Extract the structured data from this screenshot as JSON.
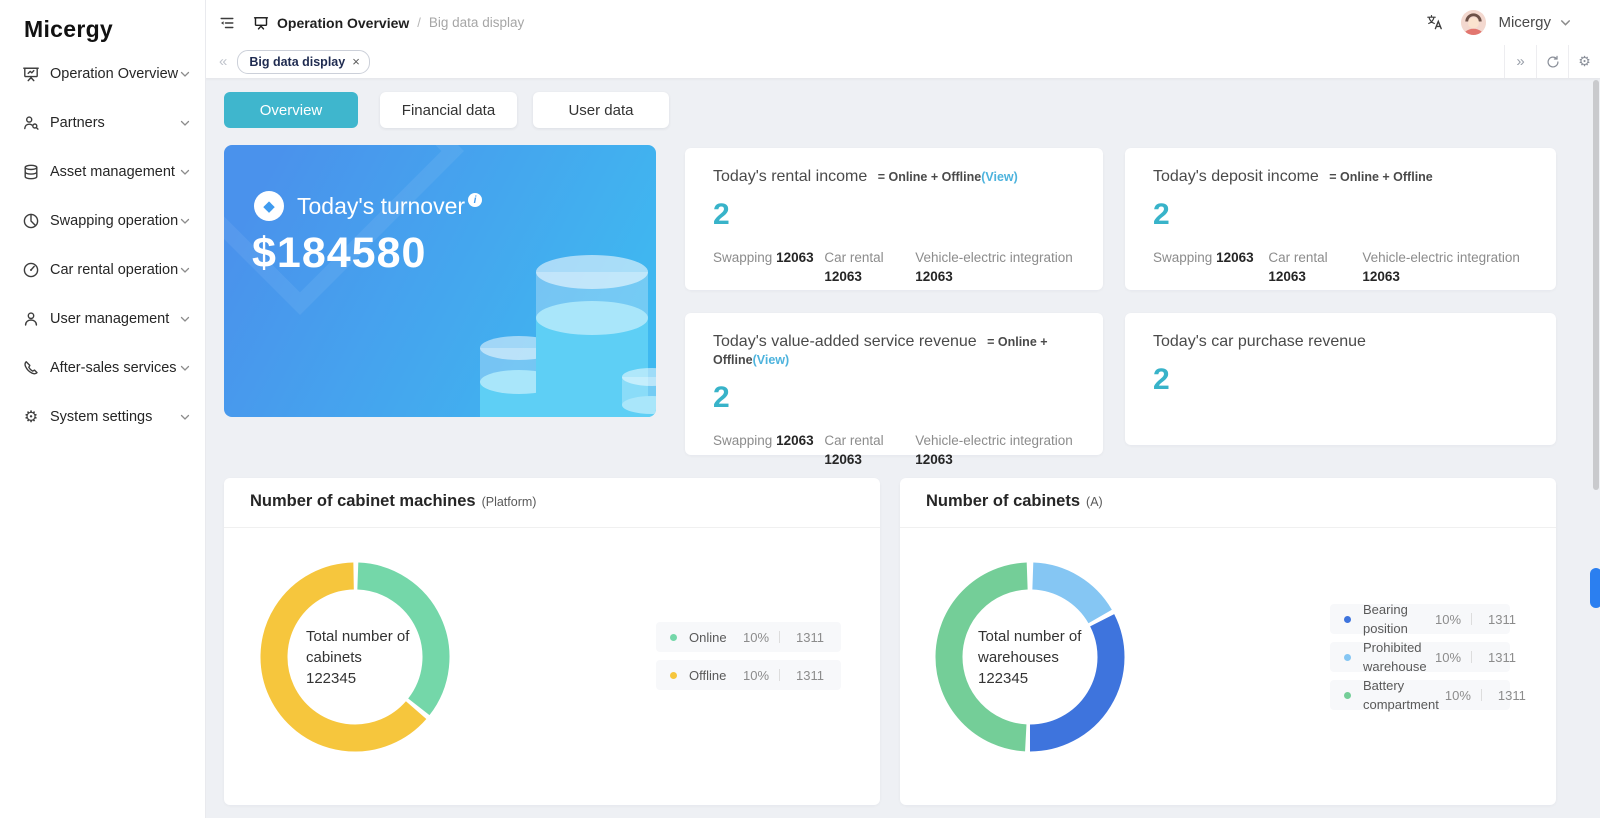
{
  "brand": {
    "name": "Micergy"
  },
  "sidebar": {
    "items": [
      {
        "label": "Operation Overview",
        "icon": "presentation-board-icon"
      },
      {
        "label": "Partners",
        "icon": "partners-icon"
      },
      {
        "label": "Asset management",
        "icon": "database-icon"
      },
      {
        "label": "Swapping operation",
        "icon": "pie-chart-icon"
      },
      {
        "label": "Car rental operation",
        "icon": "speedometer-icon"
      },
      {
        "label": "User management",
        "icon": "user-icon"
      },
      {
        "label": "After-sales services",
        "icon": "phone-icon"
      },
      {
        "label": "System settings",
        "icon": "gear-icon"
      }
    ]
  },
  "topbar": {
    "breadcrumb_section": "Operation Overview",
    "breadcrumb_sep": "/",
    "breadcrumb_page": "Big data display",
    "user_name": "Micergy"
  },
  "tabbar": {
    "back": "«",
    "forward": "»",
    "tab_label": "Big data display",
    "close": "×"
  },
  "view_tabs": {
    "overview": "Overview",
    "financial": "Financial data",
    "user": "User data"
  },
  "turnover": {
    "title": "Today's turnover",
    "info": "i",
    "diamond": "◆",
    "value": "$184580"
  },
  "cards": {
    "rental": {
      "title": "Today's rental income",
      "formula": "= Online + Offline",
      "view": "(View)",
      "value": "2",
      "stats": [
        {
          "label": "Swapping",
          "value": "12063"
        },
        {
          "label": "Car rental",
          "value": "12063"
        },
        {
          "label": "Vehicle-electric integration",
          "value": "12063"
        }
      ]
    },
    "deposit": {
      "title": "Today's deposit income",
      "formula": "= Online + Offline",
      "value": "2",
      "stats": [
        {
          "label": "Swapping",
          "value": "12063"
        },
        {
          "label": "Car rental",
          "value": "12063"
        },
        {
          "label": "Vehicle-electric integration",
          "value": "12063"
        }
      ]
    },
    "value_added": {
      "title": "Today's value-added service revenue",
      "formula": "= Online + Offline",
      "view": "(View)",
      "value": "2",
      "stats": [
        {
          "label": "Swapping",
          "value": "12063"
        },
        {
          "label": "Car rental",
          "value": "12063"
        },
        {
          "label": "Vehicle-electric integration",
          "value": "12063"
        }
      ]
    },
    "car_purchase": {
      "title": "Today's car purchase revenue",
      "value": "2"
    }
  },
  "chart_data": [
    {
      "type": "donut",
      "title": "Number of cabinet machines",
      "suffix": "(Platform)",
      "center_label": "Total number of cabinets",
      "center_value": "122345",
      "legend_position": "right",
      "segments": [
        {
          "name": "Online",
          "percent": "10%",
          "value": "1311",
          "color": "#74d7a9",
          "start_deg": 2,
          "end_deg": 128
        },
        {
          "name": "Offline",
          "percent": "10%",
          "value": "1311",
          "color": "#f6c63d",
          "start_deg": 131,
          "end_deg": 359
        }
      ]
    },
    {
      "type": "donut",
      "title": "Number of cabinets",
      "suffix": "(A)",
      "center_label": "Total number of warehouses",
      "center_value": "122345",
      "legend_position": "right",
      "segments": [
        {
          "name": "Bearing position",
          "percent": "10%",
          "value": "1311",
          "color": "#3e74dd",
          "start_deg": 63,
          "end_deg": 180
        },
        {
          "name": "Prohibited warehouse",
          "percent": "10%",
          "value": "1311",
          "color": "#85c6f3",
          "start_deg": 2,
          "end_deg": 60
        },
        {
          "name": "Battery compartment",
          "percent": "10%",
          "value": "1311",
          "color": "#74ce98",
          "start_deg": 183,
          "end_deg": 358
        }
      ]
    }
  ],
  "colors": {
    "accent_teal": "#3fb6cd",
    "big_number": "#38b3c9",
    "view_link": "#4db3dd",
    "turnover_gradient_start": "#4a92ec",
    "turnover_gradient_end": "#3fb9f0",
    "scrollbar_blue": "#2b7ff0",
    "page_background": "#eef0f4"
  }
}
